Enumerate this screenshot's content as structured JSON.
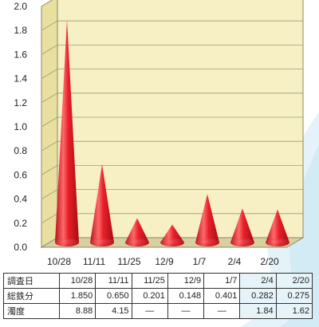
{
  "chart_data": {
    "type": "bar",
    "categories": [
      "10/28",
      "11/11",
      "11/25",
      "12/9",
      "1/7",
      "2/4",
      "2/20"
    ],
    "values": [
      1.85,
      0.65,
      0.201,
      0.148,
      0.401,
      0.282,
      0.275
    ],
    "yticks": [
      "0.0",
      "0.2",
      "0.4",
      "0.6",
      "0.8",
      "1.0",
      "1.2",
      "1.4",
      "1.6",
      "1.8",
      "2.0"
    ],
    "ylim": [
      0,
      2.0
    ],
    "grid": true,
    "mark_color": "#e8202a",
    "plot_background": "#f6f0c4"
  },
  "table": {
    "rows": [
      {
        "header": "調査日",
        "cells": [
          "10/28",
          "11/11",
          "11/25",
          "12/9",
          "1/7",
          "2/4",
          "2/20"
        ]
      },
      {
        "header": "総鉄分",
        "cells": [
          "1.850",
          "0.650",
          "0.201",
          "0.148",
          "0.401",
          "0.282",
          "0.275"
        ]
      },
      {
        "header": "濁度",
        "cells": [
          "8.88",
          "4.15",
          "—",
          "—",
          "—",
          "1.84",
          "1.62"
        ]
      }
    ]
  }
}
